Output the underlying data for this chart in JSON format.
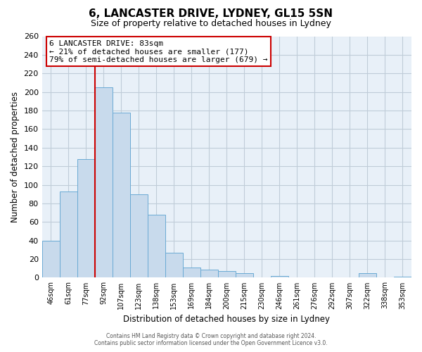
{
  "title": "6, LANCASTER DRIVE, LYDNEY, GL15 5SN",
  "subtitle": "Size of property relative to detached houses in Lydney",
  "xlabel": "Distribution of detached houses by size in Lydney",
  "ylabel": "Number of detached properties",
  "categories": [
    "46sqm",
    "61sqm",
    "77sqm",
    "92sqm",
    "107sqm",
    "123sqm",
    "138sqm",
    "153sqm",
    "169sqm",
    "184sqm",
    "200sqm",
    "215sqm",
    "230sqm",
    "246sqm",
    "261sqm",
    "276sqm",
    "292sqm",
    "307sqm",
    "322sqm",
    "338sqm",
    "353sqm"
  ],
  "values": [
    40,
    93,
    128,
    205,
    178,
    90,
    68,
    27,
    11,
    9,
    7,
    5,
    0,
    2,
    0,
    0,
    0,
    0,
    5,
    0,
    1
  ],
  "bar_color": "#c8daec",
  "bar_edge_color": "#6aaad4",
  "ylim": [
    0,
    260
  ],
  "yticks": [
    0,
    20,
    40,
    60,
    80,
    100,
    120,
    140,
    160,
    180,
    200,
    220,
    240,
    260
  ],
  "vline_x": 2.5,
  "vline_color": "#cc0000",
  "annotation_title": "6 LANCASTER DRIVE: 83sqm",
  "annotation_line1": "← 21% of detached houses are smaller (177)",
  "annotation_line2": "79% of semi-detached houses are larger (679) →",
  "annotation_box_color": "#ffffff",
  "annotation_box_edge": "#cc0000",
  "footer1": "Contains HM Land Registry data © Crown copyright and database right 2024.",
  "footer2": "Contains public sector information licensed under the Open Government Licence v3.0.",
  "plot_bg_color": "#e8f0f8",
  "fig_bg_color": "#ffffff",
  "grid_color": "#c0ccd8"
}
